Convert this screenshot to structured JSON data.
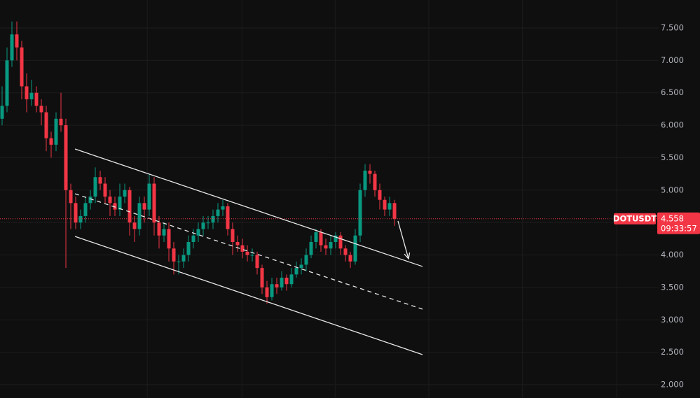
{
  "chart_data": {
    "type": "candlestick",
    "symbol": "DOTUSDT",
    "countdown": "09:33:57",
    "up_color": "#089981",
    "down_color": "#f23645",
    "xlim": [
      -0.43,
      133.86
    ],
    "xticks": [
      29.6,
      48.9,
      67.9,
      87,
      106.1,
      125.3
    ],
    "ylim": [
      1.795,
      7.931
    ],
    "yticks": [
      {
        "value": 2,
        "label": "2.000"
      },
      {
        "value": 2.5,
        "label": "2.500"
      },
      {
        "value": 3,
        "label": "3.000"
      },
      {
        "value": 3.5,
        "label": "3.500"
      },
      {
        "value": 4,
        "label": "4.000"
      },
      {
        "value": 4.5,
        "label": "4.500"
      },
      {
        "value": 5,
        "label": "5.000"
      },
      {
        "value": 5.5,
        "label": "5.500"
      },
      {
        "value": 6,
        "label": "6.000"
      },
      {
        "value": 6.5,
        "label": "6.500"
      },
      {
        "value": 7,
        "label": "7.000"
      },
      {
        "value": 7.5,
        "label": "7.500"
      }
    ],
    "grid": true,
    "open": [
      6.1,
      6.3,
      7.0,
      7.4,
      7.2,
      6.6,
      6.4,
      6.5,
      6.3,
      6.2,
      5.8,
      5.7,
      6.1,
      6.0,
      5.0,
      4.8,
      4.5,
      4.6,
      4.8,
      4.9,
      5.2,
      5.1,
      4.9,
      4.8,
      4.7,
      4.9,
      5.0,
      4.5,
      4.4,
      4.8,
      4.7,
      5.1,
      4.5,
      4.3,
      4.4,
      4.1,
      3.9,
      3.9,
      4.0,
      4.2,
      4.3,
      4.4,
      4.5,
      4.5,
      4.6,
      4.7,
      4.75,
      4.4,
      4.2,
      4.15,
      4.05,
      4.0,
      4.0,
      3.8,
      3.5,
      3.35,
      3.55,
      3.5,
      3.65,
      3.55,
      3.7,
      3.8,
      3.85,
      4.0,
      4.2,
      4.35,
      4.15,
      4.1,
      4.2,
      4.3,
      4.1,
      4.0,
      3.9,
      4.3,
      5.0,
      5.3,
      5.25,
      5.0,
      4.85,
      4.7,
      4.8
    ],
    "high": [
      6.6,
      7.2,
      7.6,
      7.6,
      7.3,
      6.8,
      6.7,
      6.6,
      6.4,
      6.3,
      5.9,
      6.2,
      6.5,
      6.1,
      5.1,
      4.9,
      4.7,
      4.9,
      5.0,
      5.35,
      5.3,
      5.2,
      5.0,
      4.9,
      5.1,
      5.1,
      5.05,
      4.6,
      4.9,
      4.9,
      5.25,
      5.2,
      4.6,
      4.5,
      4.5,
      4.2,
      4.0,
      4.1,
      4.3,
      4.4,
      4.5,
      4.6,
      4.6,
      4.7,
      4.8,
      4.85,
      4.8,
      4.5,
      4.3,
      4.25,
      4.15,
      4.1,
      4.05,
      3.85,
      3.6,
      3.65,
      3.65,
      3.75,
      3.7,
      3.8,
      3.9,
      3.95,
      4.1,
      4.3,
      4.4,
      4.4,
      4.25,
      4.3,
      4.35,
      4.35,
      4.15,
      4.05,
      4.4,
      5.1,
      5.4,
      5.4,
      5.3,
      5.1,
      4.9,
      4.9,
      4.85
    ],
    "low": [
      6.0,
      6.2,
      6.9,
      7.0,
      6.4,
      6.2,
      6.3,
      6.2,
      6.0,
      5.6,
      5.5,
      5.6,
      5.9,
      3.8,
      4.4,
      4.4,
      4.4,
      4.5,
      4.7,
      4.8,
      5.0,
      4.8,
      4.6,
      4.6,
      4.6,
      4.8,
      4.3,
      4.2,
      4.3,
      4.5,
      4.6,
      4.3,
      4.1,
      4.2,
      3.9,
      3.7,
      3.7,
      3.8,
      3.9,
      4.1,
      4.2,
      4.3,
      4.4,
      4.4,
      4.5,
      4.6,
      4.3,
      4.0,
      4.05,
      3.95,
      3.9,
      3.9,
      3.7,
      3.4,
      3.25,
      3.3,
      3.4,
      3.45,
      3.45,
      3.5,
      3.65,
      3.7,
      3.75,
      3.95,
      4.1,
      4.05,
      4.0,
      4.0,
      4.1,
      4.0,
      3.9,
      3.8,
      3.85,
      4.2,
      4.9,
      5.1,
      4.9,
      4.7,
      4.6,
      4.6,
      4.45
    ],
    "close": [
      6.3,
      7.0,
      7.4,
      7.2,
      6.6,
      6.4,
      6.5,
      6.3,
      6.2,
      5.8,
      5.7,
      6.1,
      6.0,
      5.0,
      4.8,
      4.5,
      4.6,
      4.8,
      4.9,
      5.2,
      5.1,
      4.9,
      4.8,
      4.7,
      4.9,
      5.0,
      4.5,
      4.4,
      4.8,
      4.7,
      5.1,
      4.5,
      4.3,
      4.4,
      4.1,
      3.9,
      3.9,
      4.0,
      4.2,
      4.3,
      4.4,
      4.5,
      4.5,
      4.6,
      4.7,
      4.75,
      4.4,
      4.2,
      4.15,
      4.05,
      4.0,
      4.0,
      3.8,
      3.5,
      3.35,
      3.55,
      3.5,
      3.65,
      3.55,
      3.7,
      3.8,
      3.85,
      4.0,
      4.2,
      4.35,
      4.15,
      4.1,
      4.2,
      4.3,
      4.1,
      4.0,
      3.9,
      4.3,
      5.0,
      5.3,
      5.25,
      5.0,
      4.85,
      4.7,
      4.8,
      4.558
    ],
    "drawings": [
      {
        "style": "solid",
        "x": [
          14.86,
          85.71
        ],
        "y": [
          5.634,
          3.823
        ]
      },
      {
        "style": "dashed",
        "x": [
          14.86,
          85.71
        ],
        "y": [
          4.944,
          3.165
        ]
      },
      {
        "style": "solid",
        "x": [
          14.86,
          85.71
        ],
        "y": [
          4.286,
          2.464
        ]
      },
      {
        "style": "arrow",
        "x": [
          80.71,
          82.86
        ],
        "y": [
          4.524,
          3.942
        ]
      }
    ]
  }
}
